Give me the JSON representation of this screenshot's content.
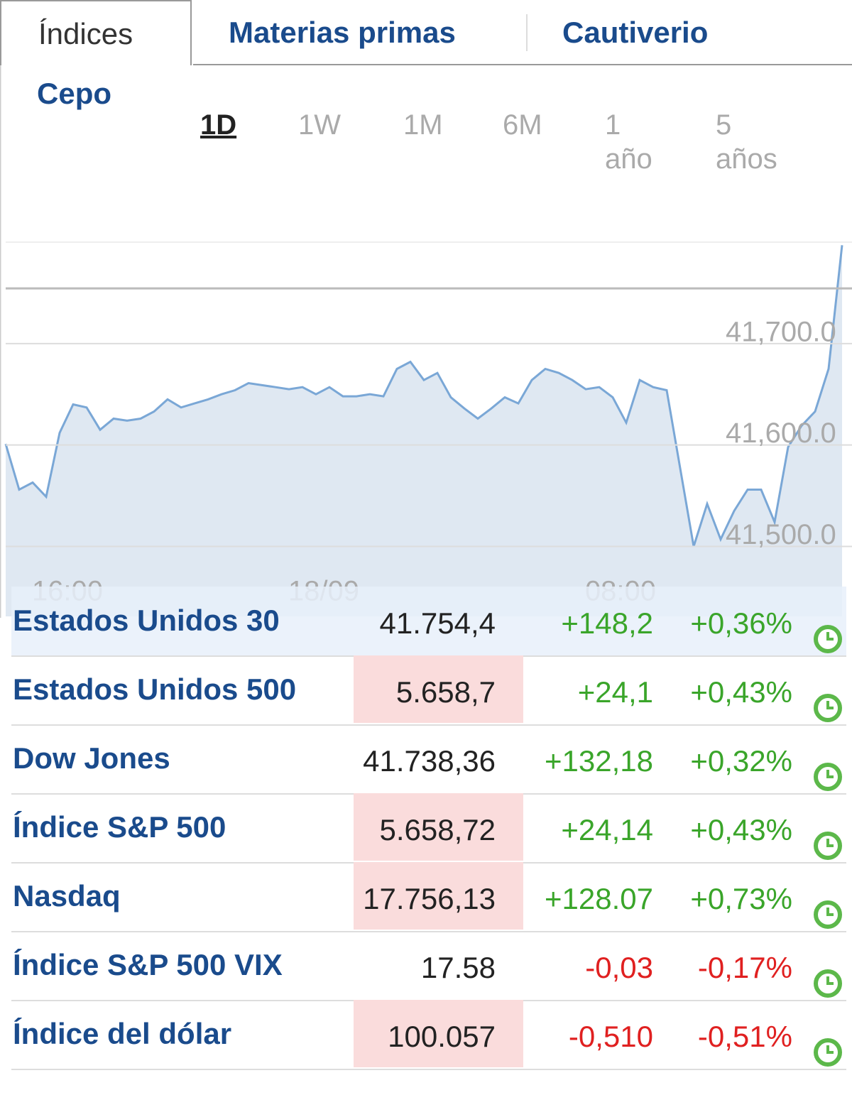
{
  "tabs": [
    "Índices",
    "Materias primas",
    "Cautiverio",
    "Cepo"
  ],
  "active_tab": 0,
  "periods": [
    "1D",
    "1W",
    "1M",
    "6M",
    "1 año",
    "5 años"
  ],
  "active_period": 0,
  "chart_data": {
    "type": "area",
    "x": [
      null,
      null,
      null,
      null,
      null,
      "16:00",
      null,
      null,
      null,
      null,
      null,
      null,
      null,
      null,
      null,
      null,
      null,
      null,
      null,
      null,
      null,
      null,
      null,
      null,
      "18/09",
      null,
      null,
      null,
      null,
      null,
      null,
      null,
      null,
      null,
      null,
      null,
      null,
      null,
      null,
      null,
      null,
      null,
      null,
      null,
      null,
      null,
      "08:00",
      null,
      null,
      null,
      null,
      null,
      null,
      null,
      null,
      null,
      null,
      null,
      null,
      null,
      null,
      null,
      null
    ],
    "values": [
      41601,
      41556,
      41563,
      41549,
      41612,
      41640,
      41637,
      41615,
      41626,
      41624,
      41626,
      41633,
      41645,
      41637,
      41641,
      41645,
      41650,
      41654,
      41661,
      41659,
      41657,
      41655,
      41657,
      41650,
      41657,
      41648,
      41648,
      41650,
      41648,
      41675,
      41682,
      41664,
      41671,
      41647,
      41636,
      41626,
      41636,
      41647,
      41641,
      41664,
      41675,
      41671,
      41664,
      41655,
      41657,
      41647,
      41622,
      41664,
      41657,
      41654,
      41577,
      41500,
      41542,
      41507,
      41535,
      41556,
      41556,
      41524,
      41598,
      41619,
      41633,
      41675,
      41797
    ],
    "color": "#7aa7d6",
    "fill": "#dfe8f2",
    "ylim": [
      41431,
      41800
    ],
    "yticks": [
      {
        "value": 41700,
        "label": "41,700.0"
      },
      {
        "value": 41600,
        "label": "41,600.0"
      },
      {
        "value": 41500,
        "label": "41,500.0"
      }
    ],
    "reference_line": 41754.4,
    "grid": true
  },
  "table": {
    "selected": 0,
    "rows": [
      {
        "name": "Estados Unidos 30",
        "price": "41.754,4",
        "change": "+148,2",
        "pct": "+0,36%",
        "highlight": false
      },
      {
        "name": "Estados Unidos 500",
        "price": "5.658,7",
        "change": "+24,1",
        "pct": "+0,43%",
        "highlight": true
      },
      {
        "name": "Dow Jones",
        "price": "41.738,36",
        "change": "+132,18",
        "pct": "+0,32%",
        "highlight": false
      },
      {
        "name": "Índice S&P 500",
        "price": "5.658,72",
        "change": "+24,14",
        "pct": "+0,43%",
        "highlight": true
      },
      {
        "name": "Nasdaq",
        "price": "17.756,13",
        "change": "+128.07",
        "pct": "+0,73%",
        "highlight": true
      },
      {
        "name": "Índice S&P 500 VIX",
        "price": "17.58",
        "change": "-0,03",
        "pct": "-0,17%",
        "highlight": false
      },
      {
        "name": "Índice del dólar",
        "price": "100.057",
        "change": "-0,510",
        "pct": "-0,51%",
        "highlight": true
      }
    ]
  }
}
